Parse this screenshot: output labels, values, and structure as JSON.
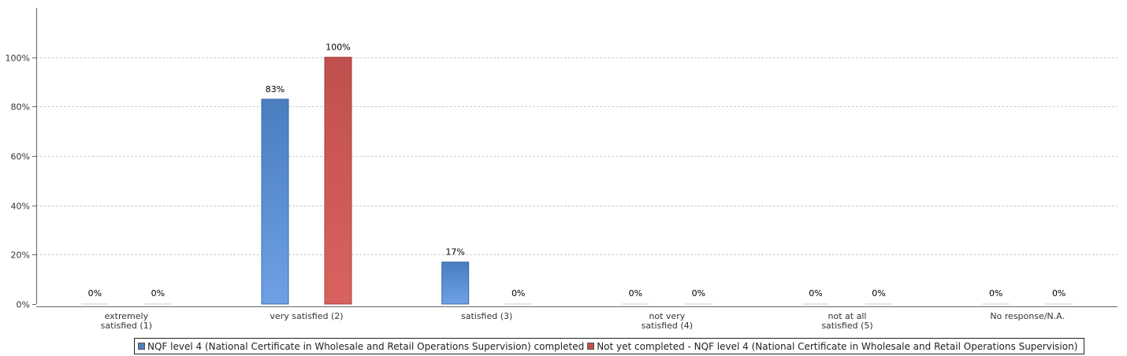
{
  "chart_data": {
    "type": "bar",
    "categories": [
      [
        "extremely",
        "satisfied (1)"
      ],
      [
        "very satisfied (2)"
      ],
      [
        "satisfied (3)"
      ],
      [
        "not very",
        "satisfied (4)"
      ],
      [
        "not at all",
        "satisfied (5)"
      ],
      [
        "No response/N.A."
      ]
    ],
    "series": [
      {
        "name": "NQF level 4 (National Certificate in Wholesale and Retail Operations Supervision) completed",
        "values": [
          0,
          83,
          17,
          0,
          0,
          0
        ],
        "labels": [
          "0%",
          "83%",
          "17%",
          "0%",
          "0%",
          "0%"
        ],
        "color": "#4f81bd"
      },
      {
        "name": "Not yet completed - NQF level 4 (National Certificate in Wholesale and Retail Operations Supervision)",
        "values": [
          0,
          100,
          0,
          0,
          0,
          0
        ],
        "labels": [
          "0%",
          "100%",
          "0%",
          "0%",
          "0%",
          "0%"
        ],
        "color": "#c0504d"
      }
    ],
    "ylim": [
      0,
      120
    ],
    "yticks": [
      0,
      20,
      40,
      60,
      80,
      100
    ],
    "ytick_labels": [
      "0%",
      "20%",
      "40%",
      "60%",
      "80%",
      "100%"
    ],
    "grid": true,
    "legend_position": "bottom-center"
  }
}
